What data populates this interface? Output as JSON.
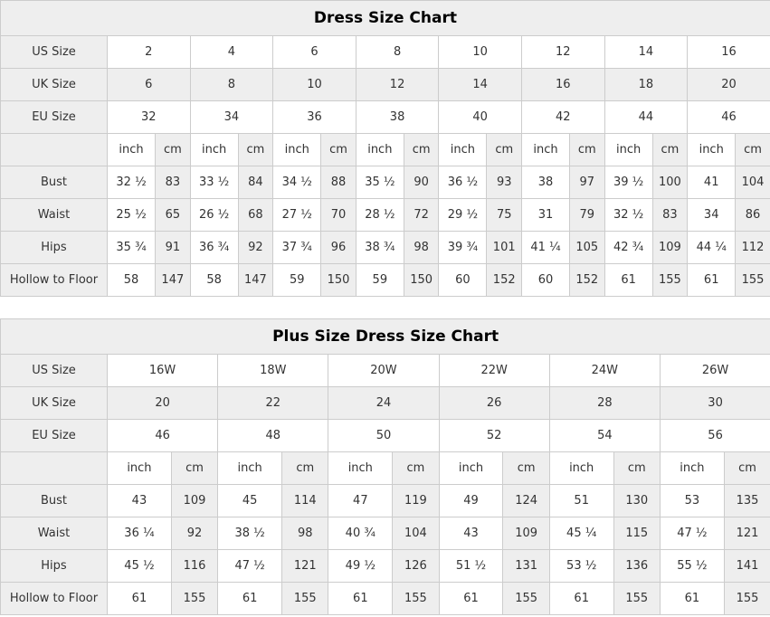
{
  "colors": {
    "shaded_bg": "#eeeeee",
    "border": "#cccccc",
    "text": "#333333",
    "title_text": "#000000"
  },
  "tables": [
    {
      "name": "dress-size-chart",
      "title": "Dress Size Chart",
      "unit_labels": {
        "inch": "inch",
        "cm": "cm"
      },
      "size_rows": [
        {
          "label": "US Size",
          "shaded": false,
          "values": [
            "2",
            "4",
            "6",
            "8",
            "10",
            "12",
            "14",
            "16"
          ]
        },
        {
          "label": "UK Size",
          "shaded": true,
          "values": [
            "6",
            "8",
            "10",
            "12",
            "14",
            "16",
            "18",
            "20"
          ]
        },
        {
          "label": "EU Size",
          "shaded": false,
          "values": [
            "32",
            "34",
            "36",
            "38",
            "40",
            "42",
            "44",
            "46"
          ]
        }
      ],
      "measure_rows": [
        {
          "label": "Bust",
          "values": [
            [
              "32 ½",
              "83"
            ],
            [
              "33 ½",
              "84"
            ],
            [
              "34 ½",
              "88"
            ],
            [
              "35 ½",
              "90"
            ],
            [
              "36 ½",
              "93"
            ],
            [
              "38",
              "97"
            ],
            [
              "39 ½",
              "100"
            ],
            [
              "41",
              "104"
            ]
          ]
        },
        {
          "label": "Waist",
          "values": [
            [
              "25 ½",
              "65"
            ],
            [
              "26 ½",
              "68"
            ],
            [
              "27 ½",
              "70"
            ],
            [
              "28 ½",
              "72"
            ],
            [
              "29 ½",
              "75"
            ],
            [
              "31",
              "79"
            ],
            [
              "32 ½",
              "83"
            ],
            [
              "34",
              "86"
            ]
          ]
        },
        {
          "label": "Hips",
          "values": [
            [
              "35 ¾",
              "91"
            ],
            [
              "36 ¾",
              "92"
            ],
            [
              "37 ¾",
              "96"
            ],
            [
              "38 ¾",
              "98"
            ],
            [
              "39 ¾",
              "101"
            ],
            [
              "41 ¼",
              "105"
            ],
            [
              "42 ¾",
              "109"
            ],
            [
              "44 ¼",
              "112"
            ]
          ]
        },
        {
          "label": "Hollow to Floor",
          "values": [
            [
              "58",
              "147"
            ],
            [
              "58",
              "147"
            ],
            [
              "59",
              "150"
            ],
            [
              "59",
              "150"
            ],
            [
              "60",
              "152"
            ],
            [
              "60",
              "152"
            ],
            [
              "61",
              "155"
            ],
            [
              "61",
              "155"
            ]
          ]
        }
      ]
    },
    {
      "name": "plus-size-dress-size-chart",
      "title": "Plus Size Dress Size Chart",
      "unit_labels": {
        "inch": "inch",
        "cm": "cm"
      },
      "size_rows": [
        {
          "label": "US Size",
          "shaded": false,
          "values": [
            "16W",
            "18W",
            "20W",
            "22W",
            "24W",
            "26W"
          ]
        },
        {
          "label": "UK Size",
          "shaded": true,
          "values": [
            "20",
            "22",
            "24",
            "26",
            "28",
            "30"
          ]
        },
        {
          "label": "EU Size",
          "shaded": false,
          "values": [
            "46",
            "48",
            "50",
            "52",
            "54",
            "56"
          ]
        }
      ],
      "measure_rows": [
        {
          "label": "Bust",
          "values": [
            [
              "43",
              "109"
            ],
            [
              "45",
              "114"
            ],
            [
              "47",
              "119"
            ],
            [
              "49",
              "124"
            ],
            [
              "51",
              "130"
            ],
            [
              "53",
              "135"
            ]
          ]
        },
        {
          "label": "Waist",
          "values": [
            [
              "36 ¼",
              "92"
            ],
            [
              "38 ½",
              "98"
            ],
            [
              "40 ¾",
              "104"
            ],
            [
              "43",
              "109"
            ],
            [
              "45 ¼",
              "115"
            ],
            [
              "47 ½",
              "121"
            ]
          ]
        },
        {
          "label": "Hips",
          "values": [
            [
              "45 ½",
              "116"
            ],
            [
              "47 ½",
              "121"
            ],
            [
              "49 ½",
              "126"
            ],
            [
              "51 ½",
              "131"
            ],
            [
              "53 ½",
              "136"
            ],
            [
              "55 ½",
              "141"
            ]
          ]
        },
        {
          "label": "Hollow to Floor",
          "values": [
            [
              "61",
              "155"
            ],
            [
              "61",
              "155"
            ],
            [
              "61",
              "155"
            ],
            [
              "61",
              "155"
            ],
            [
              "61",
              "155"
            ],
            [
              "61",
              "155"
            ]
          ]
        }
      ]
    }
  ]
}
